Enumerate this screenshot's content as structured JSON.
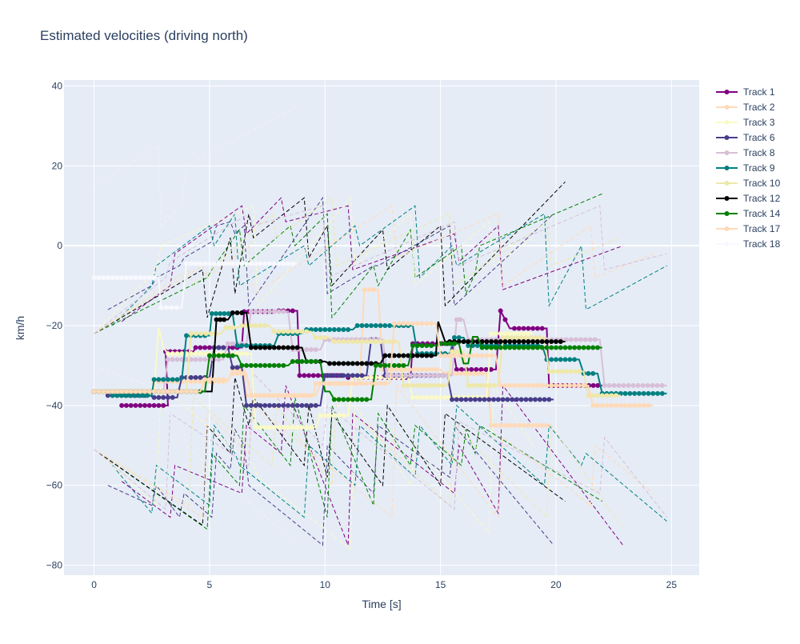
{
  "chart_data": {
    "type": "line",
    "title": "Estimated velocities (driving north)",
    "xlabel": "Time [s]",
    "ylabel": "km/h",
    "xlim": [
      -1.3,
      26.2
    ],
    "ylim": [
      -82.5,
      41.5
    ],
    "xticks": [
      0,
      5,
      10,
      15,
      20,
      25
    ],
    "yticks": [
      -80,
      -60,
      -40,
      -20,
      0,
      20,
      40
    ],
    "grid": true,
    "legend_position": "right",
    "series": [
      {
        "name": "Track 1",
        "color": "#800080",
        "opacity": 1,
        "x": [
          1.2,
          3.2,
          3.1,
          4.3,
          4.4,
          6.4,
          6.5,
          7.9,
          8.0,
          8.8,
          8.9,
          10.9,
          11.0,
          13.7,
          13.8,
          15.5,
          15.7,
          17.4,
          17.6,
          18.0,
          18.2,
          19.6,
          19.7,
          22.0
        ],
        "y": [
          -40,
          -40,
          -26.5,
          -26.5,
          -25.5,
          -25.5,
          -16.5,
          -16.5,
          -16.3,
          -16.3,
          -32.5,
          -32.5,
          -33,
          -33,
          -24.5,
          -24.5,
          -31,
          -31,
          -16.3,
          -20.7,
          -20.7,
          -20.7,
          -35,
          -35
        ]
      },
      {
        "name": "Track 2",
        "color": "#ffdab9",
        "opacity": 1,
        "x": [
          0,
          2.5,
          2.6,
          5.8,
          6.0,
          6.5,
          6.6,
          9.5,
          9.6,
          11.5,
          11.7,
          12.3,
          12.5,
          15.0,
          15.1,
          17.0,
          17.2,
          19.8
        ],
        "y": [
          -36.5,
          -36.5,
          -34,
          -34,
          -31,
          -31,
          -37.5,
          -37.5,
          -34.5,
          -34.5,
          -11,
          -11,
          -31,
          -31,
          -32,
          -32,
          -45,
          -45
        ]
      },
      {
        "name": "Track 3",
        "color": "#fafac8",
        "opacity": 1,
        "x": [
          0,
          2.6,
          2.8,
          3.0,
          3.2,
          6.8,
          7.0,
          9.6,
          9.8,
          11.0,
          11.2,
          13.6,
          13.8,
          17.0,
          17.2,
          19.0
        ],
        "y": [
          -36.5,
          -36.5,
          -20.5,
          -25.5,
          -27,
          -27,
          -45.5,
          -45.5,
          -42.5,
          -42.5,
          -33,
          -33,
          -38,
          -38,
          -22,
          -22
        ]
      },
      {
        "name": "Track 6",
        "color": "#483d8b",
        "opacity": 1,
        "x": [
          0.6,
          2.4,
          2.6,
          3.6,
          3.8,
          5.0,
          5.2,
          5.8,
          6.0,
          6.4,
          6.6,
          9.8,
          10.0,
          11.8,
          12.0,
          12.4,
          12.6,
          15.3,
          15.5,
          19.9
        ],
        "y": [
          -37.5,
          -37.5,
          -38,
          -38,
          -33,
          -33,
          -25.5,
          -25.5,
          -30.5,
          -30.5,
          -40,
          -40,
          -32.5,
          -32.5,
          -23.5,
          -23.5,
          -32.5,
          -32.5,
          -38.5,
          -38.5
        ]
      },
      {
        "name": "Track 8",
        "color": "#d8bfd8",
        "opacity": 1,
        "x": [
          0,
          3.0,
          3.2,
          5.6,
          5.8,
          6.6,
          6.8,
          8.4,
          8.6,
          9.8,
          10.0,
          12.5,
          12.7,
          15.5,
          15.7,
          16.0,
          16.2,
          19.0,
          19.2,
          21.9,
          22.1,
          24.8
        ],
        "y": [
          -36.5,
          -36.5,
          -28.5,
          -28.5,
          -24.5,
          -24.5,
          -16.5,
          -16.5,
          -26,
          -26,
          -23.5,
          -23.5,
          -32.5,
          -32.5,
          -18.5,
          -18.5,
          -23.5,
          -23.5,
          -23.5,
          -23.5,
          -35,
          -35
        ]
      },
      {
        "name": "Track 9",
        "color": "#008080",
        "opacity": 1,
        "x": [
          0.8,
          2.5,
          2.6,
          3.8,
          4.0,
          5.0,
          5.1,
          6.0,
          6.2,
          7.8,
          8.0,
          9.0,
          9.2,
          11.2,
          11.4,
          13.8,
          14.0,
          15.4,
          15.6,
          16.0,
          16.2,
          19.4,
          19.6,
          21.0,
          21.2,
          21.8,
          22.0,
          24.8
        ],
        "y": [
          -37.5,
          -37.5,
          -33.5,
          -33.5,
          -22.5,
          -22.5,
          -17,
          -17,
          -25,
          -25,
          -22,
          -22,
          -21,
          -21,
          -20,
          -20,
          -27,
          -27,
          -23,
          -23,
          -25,
          -25,
          -28.5,
          -28.5,
          -32,
          -32,
          -37,
          -37
        ]
      },
      {
        "name": "Track 10",
        "color": "#eee8aa",
        "opacity": 1,
        "x": [
          0,
          4.0,
          4.2,
          5.5,
          5.7,
          6.2,
          6.4,
          7.6,
          7.8,
          9.4,
          9.6,
          10.2,
          10.4,
          13.2,
          13.4,
          15.3,
          15.5,
          16.0,
          16.2,
          17.5,
          17.7,
          19.5,
          19.7,
          21.2,
          21.4,
          22.8
        ],
        "y": [
          -36.5,
          -36.5,
          -22,
          -22,
          -20.5,
          -20.5,
          -20,
          -20,
          -21.5,
          -21.5,
          -23,
          -23,
          -24,
          -24,
          -35,
          -35,
          -26.5,
          -26.5,
          -35,
          -35,
          -23,
          -23,
          -31.5,
          -31.5,
          -37.5,
          -37.5
        ]
      },
      {
        "name": "Track 12",
        "color": "#000000",
        "opacity": 1,
        "x": [
          0,
          4.6,
          4.8,
          5.1,
          5.3,
          5.8,
          6.0,
          6.6,
          6.8,
          9.0,
          9.2,
          10.0,
          10.2,
          12.4,
          12.6,
          14.8,
          14.9,
          15.2,
          15.4,
          20.4
        ],
        "y": [
          -36.5,
          -36.5,
          -36.5,
          -36.5,
          -18.5,
          -18.5,
          -16.8,
          -16.8,
          -25.5,
          -25.5,
          -29,
          -29,
          -29.5,
          -29.5,
          -27.5,
          -27.5,
          -19,
          -24,
          -24,
          -24
        ]
      },
      {
        "name": "Track 14",
        "color": "#008000",
        "opacity": 1,
        "x": [
          0,
          4.8,
          5.0,
          6.2,
          6.4,
          8.4,
          8.6,
          9.8,
          10.0,
          10.2,
          10.4,
          12.0,
          12.2,
          13.6,
          13.8,
          14.8,
          15.0,
          15.8,
          16.0,
          16.2,
          16.4,
          16.6,
          16.8,
          22.0
        ],
        "y": [
          -36.5,
          -36.5,
          -27.5,
          -27.5,
          -30,
          -30,
          -29,
          -29,
          -36.5,
          -36.5,
          -38.5,
          -38.5,
          -30,
          -30,
          -25,
          -25,
          -24.5,
          -24.5,
          -29.5,
          -29.5,
          -22.8,
          -22.8,
          -25.5,
          -25.5
        ]
      },
      {
        "name": "Track 17",
        "color": "#ffdab9",
        "opacity": 1,
        "x": [
          0,
          4.6,
          4.8,
          5.8,
          6.0,
          6.6,
          6.8,
          9.6,
          9.8,
          12.8,
          13.0,
          14.8,
          15.0,
          17.4,
          17.6,
          21.4,
          21.6,
          24.2
        ],
        "y": [
          -36.5,
          -36.5,
          -33.5,
          -33.5,
          -32,
          -32,
          -37.5,
          -37.5,
          -34.5,
          -34.5,
          -19.5,
          -19.5,
          -27.5,
          -27.5,
          -35,
          -35,
          -40,
          -40
        ]
      },
      {
        "name": "Track 18",
        "color": "#f8f8ff",
        "opacity": 1,
        "x": [
          0,
          2.8,
          2.9,
          3.8,
          4.0,
          8.8
        ],
        "y": [
          -8,
          -8,
          -15.5,
          -15.5,
          -4.5,
          -4.5
        ]
      }
    ],
    "bound_lines": [
      {
        "color": "#800080",
        "x": [
          1.2,
          3.3,
          3.5,
          6.4,
          6.6,
          8.1,
          8.3,
          11.0,
          11.2,
          15.6,
          15.8,
          17.5,
          17.7,
          22.9
        ],
        "upper": [
          -19,
          -10,
          -2,
          10,
          3,
          12,
          6,
          10,
          -6,
          3,
          -4,
          5,
          -11,
          0
        ],
        "lower": [
          -59,
          -68,
          -55,
          -62,
          -45,
          -52,
          -35,
          -75,
          -42,
          -62,
          -50,
          -67,
          -35,
          -75
        ]
      },
      {
        "color": "#483d8b",
        "x": [
          0.6,
          2.5,
          2.7,
          3.7,
          3.9,
          5.1,
          5.3,
          5.9,
          6.1,
          6.5,
          6.7,
          9.9,
          10.1,
          12.1,
          12.3,
          15.4,
          15.6,
          19.9
        ],
        "upper": [
          -16,
          -10,
          -8,
          -5,
          -3,
          1,
          5,
          6,
          3,
          5,
          -15,
          12,
          -12,
          -5,
          -5,
          5,
          -15,
          8
        ],
        "lower": [
          -60,
          -65,
          -60,
          -68,
          -62,
          -68,
          -52,
          -56,
          -46,
          -50,
          -60,
          -75,
          -50,
          -62,
          -45,
          -58,
          -45,
          -75
        ]
      },
      {
        "color": "#008080",
        "x": [
          0.8,
          2.5,
          2.7,
          5.0,
          5.2,
          6.1,
          6.3,
          9.1,
          9.3,
          11.3,
          11.5,
          13.9,
          14.1,
          15.5,
          15.7,
          19.5,
          19.7,
          21.1,
          21.3,
          24.8
        ],
        "upper": [
          -20,
          -10,
          -5,
          5,
          0,
          8,
          -10,
          0,
          -5,
          5,
          0,
          10,
          -8,
          0,
          -5,
          8,
          -15,
          0,
          -16,
          -5
        ],
        "lower": [
          -55,
          -67,
          -55,
          -65,
          -45,
          -52,
          -55,
          -68,
          -50,
          -60,
          -45,
          -58,
          -45,
          -55,
          -40,
          -60,
          -45,
          -55,
          -52,
          -69
        ]
      },
      {
        "color": "#008000",
        "x": [
          0,
          4.9,
          5.1,
          6.3,
          6.5,
          8.5,
          8.7,
          10.1,
          10.3,
          12.1,
          12.3,
          13.7,
          13.9,
          15.9,
          16.1,
          16.5,
          16.7,
          22.0
        ],
        "upper": [
          -22,
          -8,
          -6,
          4,
          -5,
          5,
          0,
          8,
          -18,
          -5,
          -10,
          4,
          -8,
          0,
          -12,
          -7,
          0,
          13
        ],
        "lower": [
          -51,
          -71,
          -52,
          -60,
          -40,
          -55,
          -38,
          -68,
          -40,
          -65,
          -42,
          -55,
          -45,
          -55,
          -46,
          -52,
          -45,
          -64
        ]
      },
      {
        "color": "#000000",
        "x": [
          0,
          4.7,
          4.9,
          5.9,
          6.1,
          6.7,
          6.9,
          9.1,
          9.3,
          10.1,
          10.3,
          12.5,
          12.7,
          15.0,
          15.2,
          20.4
        ],
        "upper": [
          -22,
          -6,
          -18,
          2,
          -12,
          8,
          2,
          12,
          -3,
          5,
          -10,
          4,
          -6,
          5,
          -15,
          16
        ],
        "lower": [
          -51,
          -70,
          -45,
          -52,
          -33,
          -45,
          -38,
          -55,
          -40,
          -58,
          -42,
          -60,
          -40,
          -60,
          -42,
          -64
        ]
      },
      {
        "color": "#eee8aa",
        "x": [
          0,
          4.1,
          4.3,
          7.7,
          7.9,
          10.3,
          10.5,
          15.4,
          15.6,
          19.6,
          19.8,
          22.8
        ],
        "upper": [
          -22,
          -6,
          -10,
          8,
          2,
          12,
          -5,
          8,
          -10,
          6,
          -5,
          2
        ],
        "lower": [
          -51,
          -65,
          -38,
          -55,
          -40,
          -60,
          -38,
          -65,
          -45,
          -68,
          -45,
          -70
        ]
      },
      {
        "color": "#ffdab9",
        "x": [
          0,
          4.7,
          4.9,
          6.7,
          6.9,
          12.9,
          13.1,
          17.5,
          17.7,
          21.5,
          21.7,
          24.2
        ],
        "upper": [
          -22,
          -5,
          -8,
          0,
          -12,
          10,
          -3,
          8,
          -10,
          5,
          -8,
          -2
        ],
        "lower": [
          -51,
          -68,
          -42,
          -52,
          -40,
          -68,
          -35,
          -68,
          -48,
          -65,
          -50,
          -62
        ]
      },
      {
        "color": "#fafac8",
        "x": [
          0,
          2.7,
          2.9,
          6.9,
          7.1,
          11.1,
          11.3,
          13.7,
          13.9,
          17.1,
          17.3,
          19.0
        ],
        "upper": [
          -22,
          -6,
          0,
          10,
          -15,
          12,
          -5,
          8,
          -10,
          6,
          -5,
          2
        ],
        "lower": [
          -51,
          -65,
          -35,
          -55,
          -58,
          -76,
          -40,
          -60,
          -50,
          -72,
          -35,
          -50
        ]
      },
      {
        "color": "#d8bfd8",
        "x": [
          0,
          3.1,
          3.3,
          6.7,
          6.9,
          9.9,
          10.1,
          15.6,
          15.8,
          21.9,
          22.1,
          24.8
        ],
        "upper": [
          -22,
          -8,
          -4,
          8,
          5,
          10,
          -8,
          6,
          -5,
          10,
          -6,
          -2
        ],
        "lower": [
          -51,
          -66,
          -42,
          -55,
          -32,
          -50,
          -40,
          -66,
          -44,
          -62,
          -48,
          -68
        ]
      },
      {
        "color": "#f0f0f8",
        "x": [
          0,
          2.8,
          2.9,
          3.8,
          4.0,
          8.8
        ],
        "upper": [
          15,
          25,
          5,
          10,
          20,
          35
        ],
        "lower": [
          -30,
          -36,
          -40,
          -45,
          -50,
          -75
        ]
      }
    ]
  }
}
